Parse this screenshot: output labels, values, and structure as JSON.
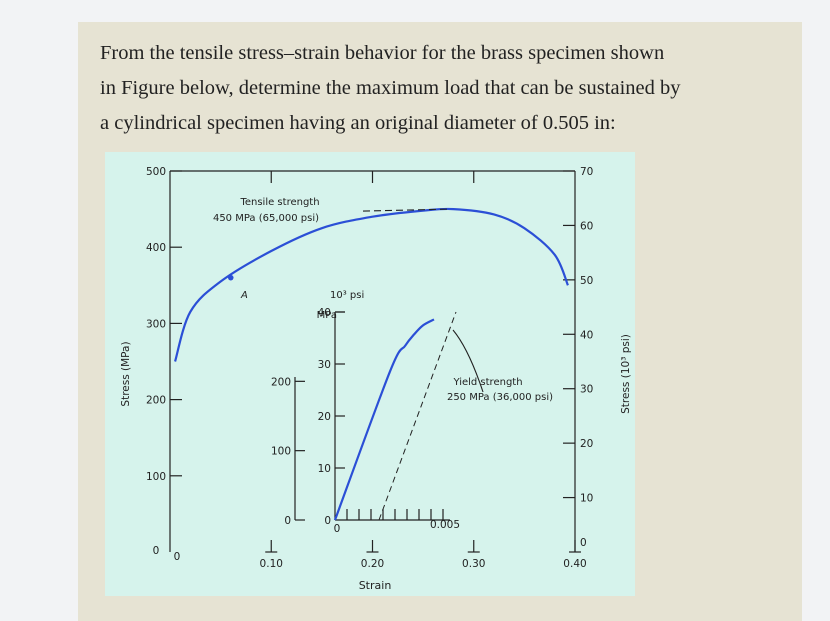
{
  "question": {
    "lines": [
      "From the tensile stress–strain behavior for the brass specimen shown",
      "in Figure below, determine the maximum load that can be sustained by",
      "a cylindrical specimen having an original diameter of 0.505 in:"
    ]
  },
  "chart_data": [
    {
      "type": "line",
      "title": "",
      "xlabel": "Strain",
      "ylabel_left": "Stress (MPa)",
      "ylabel_right": "Stress (10³ psi)",
      "xlim": [
        0,
        0.4
      ],
      "ylim_left": [
        0,
        500
      ],
      "ylim_right": [
        0,
        70
      ],
      "x_ticks": [
        "0",
        "0.10",
        "0.20",
        "0.30",
        "0.40"
      ],
      "y_left_ticks": [
        "0",
        "100",
        "200",
        "300",
        "400",
        "500"
      ],
      "y_right_ticks": [
        "0",
        "10",
        "20",
        "30",
        "40",
        "50",
        "60",
        "70"
      ],
      "grid": false,
      "series": [
        {
          "color": "#2b4fd6",
          "x": [
            0.0,
            0.005,
            0.02,
            0.05,
            0.1,
            0.15,
            0.2,
            0.25,
            0.28,
            0.32,
            0.35,
            0.38,
            0.393
          ],
          "y": [
            0,
            250,
            315,
            355,
            395,
            425,
            440,
            448,
            450,
            443,
            425,
            390,
            350
          ]
        }
      ],
      "point_label": "A",
      "point": {
        "x": 0.06,
        "y": 360
      },
      "annotations": {
        "tensile_line1": "Tensile strength",
        "tensile_line2": "450 MPa (65,000 psi)",
        "yield_line1": "Yield strength",
        "yield_line2": "250 MPa (36,000 psi)"
      }
    },
    {
      "type": "line",
      "title": "",
      "xlim": [
        0,
        0.005
      ],
      "unit_left": "MPa",
      "unit_right": "10³ psi",
      "y_left_ticks": [
        "0",
        "100",
        "200"
      ],
      "y_right_ticks": [
        "0",
        "10",
        "20",
        "30",
        "40"
      ],
      "x_ticks": [
        "0",
        "0.005"
      ],
      "series": [
        {
          "color": "#2b4fd6",
          "x": [
            0.0,
            0.0025,
            0.0032,
            0.0036,
            0.004,
            0.0045
          ],
          "y": [
            0,
            200,
            235,
            250,
            262,
            270
          ]
        }
      ],
      "offset_line": {
        "x": [
          0.002,
          0.0055
        ],
        "y": [
          0,
          280
        ]
      }
    }
  ]
}
